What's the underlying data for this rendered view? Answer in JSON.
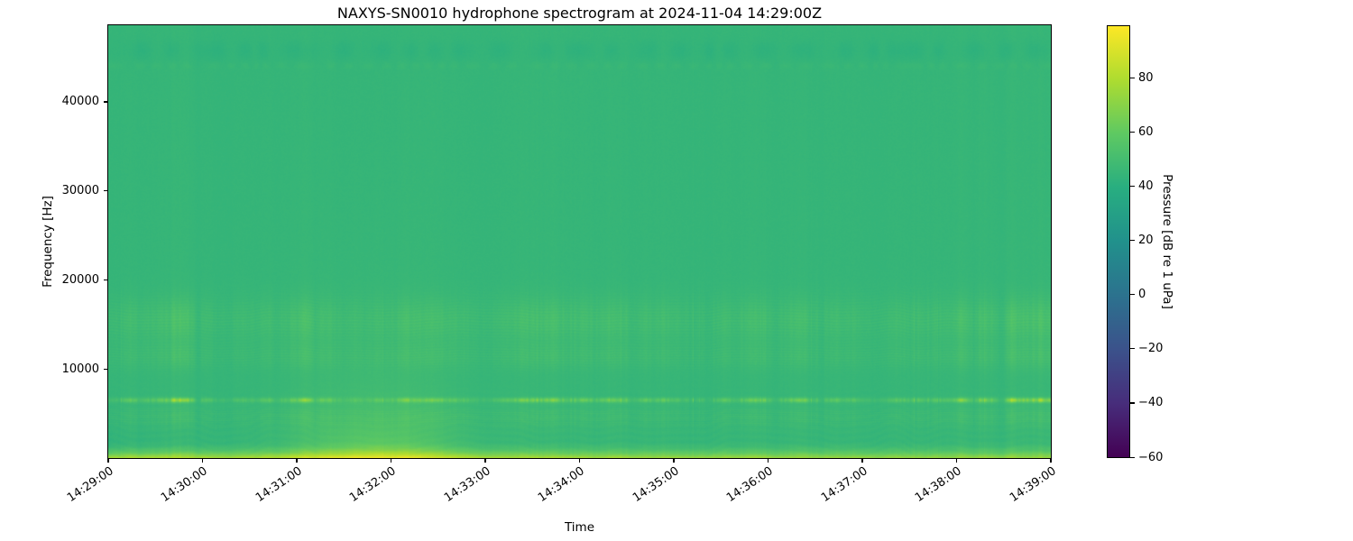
{
  "figure": {
    "background_color": "#ffffff"
  },
  "chart_data": {
    "type": "heatmap",
    "subtype": "spectrogram",
    "title": "NAXYS-SN0010 hydrophone spectrogram at 2024-11-04 14:29:00Z",
    "xlabel": "Time",
    "ylabel": "Frequency [Hz]",
    "x_tick_labels": [
      "14:29:00",
      "14:30:00",
      "14:31:00",
      "14:32:00",
      "14:33:00",
      "14:34:00",
      "14:35:00",
      "14:36:00",
      "14:37:00",
      "14:38:00",
      "14:39:00"
    ],
    "x_tick_rotation_deg": 34,
    "y_tick_values": [
      10000,
      20000,
      30000,
      40000
    ],
    "y_axis_range_hz": [
      0,
      48600
    ],
    "time_range_seconds": 600,
    "grid": false,
    "legend": false,
    "colormap": "viridis",
    "colormap_stops": [
      "#440154",
      "#472d7b",
      "#3b528b",
      "#2c728e",
      "#21918c",
      "#28ae80",
      "#5ec962",
      "#addc30",
      "#fde725"
    ],
    "value_range_db": [
      -60,
      99
    ],
    "colorbar": {
      "label": "Pressure [dB re 1 uPa]",
      "tick_values": [
        80,
        60,
        40,
        20,
        0,
        -20,
        -40,
        -60
      ]
    },
    "content": {
      "background_level_db": 44,
      "features": [
        {
          "name": "surface-noise-band",
          "freq_hz": [
            0,
            1900
          ],
          "peak_db": 78,
          "note": "bright yellow-green band hugging the bottom edge, strongest 14:29-14:33, thinner after 14:34"
        },
        {
          "name": "low-frequency-event",
          "time_center": "14:31:50",
          "time_span": [
            "14:30:30",
            "14:32:50"
          ],
          "freq_hz": [
            0,
            10000
          ],
          "boost_db": 16,
          "note": "broad yellowish wash rising out of the surface band around 14:31-14:32"
        },
        {
          "name": "tonal-band-6_5khz",
          "freq_hz": [
            6350,
            6750
          ],
          "peak_db": 84,
          "note": "horizontal row of intermittent bright dashes near 6.5 kHz across the whole record"
        },
        {
          "name": "texture-band-14-17khz",
          "freq_hz": [
            13500,
            17500
          ],
          "boost_db": 9,
          "note": "speckled light-green stripe band"
        },
        {
          "name": "texture-band-10-12khz",
          "freq_hz": [
            10300,
            12500
          ],
          "boost_db": 6,
          "note": "fainter speckled band"
        },
        {
          "name": "texture-band-4-5khz",
          "freq_hz": [
            3800,
            5600
          ],
          "boost_db": 5,
          "note": "faint rippled band below the tonal line"
        },
        {
          "name": "broadband-vertical-striping",
          "boost_db": 5,
          "note": "clustered thin vertical stripes (impulsive noise) spanning all frequencies"
        },
        {
          "name": "high-frequency-ripple",
          "freq_hz": [
            43200,
            46800
          ],
          "note": "faint darker wavy scalloped band near 44-46 kHz at the top"
        }
      ]
    }
  }
}
